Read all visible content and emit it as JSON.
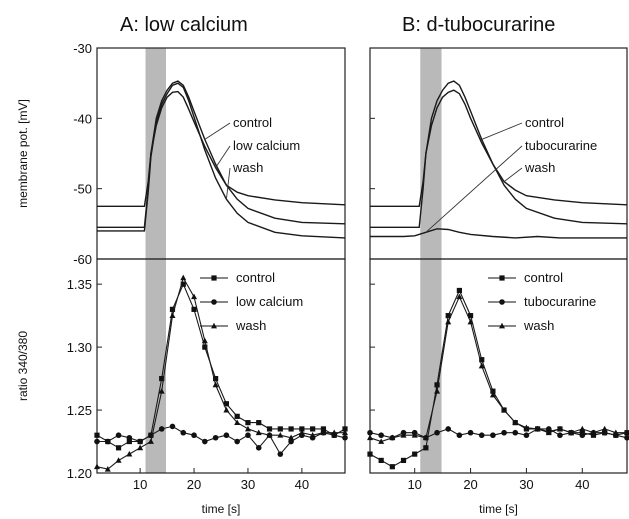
{
  "chart_data": [
    {
      "type": "line",
      "panel": "A",
      "title": "A: low calcium",
      "stimulus_band": [
        11,
        14.8
      ],
      "top": {
        "ylabel": "membrane pot. [mV]",
        "ylim": [
          -60,
          -30
        ],
        "yticks": [
          "-30",
          "-40",
          "-50",
          "-60"
        ],
        "labels": [
          "control",
          "low calcium",
          "wash"
        ],
        "series": [
          {
            "name": "control",
            "x": [
              2,
              10.8,
              11.5,
              12,
              13,
              14,
              15,
              16,
              17,
              18,
              19,
              20,
              22,
              24,
              26,
              28,
              30,
              35,
              40,
              48
            ],
            "y": [
              -55.5,
              -55.5,
              -50,
              -45,
              -40,
              -37.5,
              -36,
              -35,
              -34.7,
              -35.3,
              -37,
              -39,
              -43,
              -46.5,
              -49.5,
              -51.5,
              -52.8,
              -54.2,
              -54.8,
              -55
            ]
          },
          {
            "name": "low calcium",
            "x": [
              2,
              10.8,
              11.5,
              12,
              13,
              14,
              15,
              16,
              17,
              18,
              19,
              20,
              22,
              24,
              26,
              28,
              30,
              35,
              40,
              48
            ],
            "y": [
              -52.5,
              -52.5,
              -49,
              -45,
              -41,
              -38.5,
              -37,
              -36.3,
              -36.2,
              -37,
              -38.7,
              -40.5,
              -44,
              -47,
              -49.5,
              -50.5,
              -51,
              -51.6,
              -52,
              -52.3
            ]
          },
          {
            "name": "wash",
            "x": [
              2,
              10.8,
              11.5,
              12,
              13,
              14,
              15,
              16,
              17,
              18,
              19,
              20,
              22,
              24,
              26,
              28,
              30,
              35,
              40,
              48
            ],
            "y": [
              -56,
              -56,
              -50.5,
              -45.5,
              -40.5,
              -38,
              -36.5,
              -35.3,
              -35,
              -35.6,
              -37.5,
              -39.8,
              -44.5,
              -48.5,
              -51.5,
              -53.5,
              -54.8,
              -56.2,
              -56.7,
              -57
            ]
          }
        ]
      },
      "bottom": {
        "ylabel": "ratio 340/380",
        "xlabel": "time [s]",
        "xlim": [
          2,
          48
        ],
        "ylim": [
          1.2,
          1.37
        ],
        "yticks": [
          "1.35",
          "1.30",
          "1.25",
          "1.20"
        ],
        "xticks": [
          "10",
          "20",
          "30",
          "40"
        ],
        "legend": [
          "control",
          "low calcium",
          "wash"
        ],
        "series": [
          {
            "name": "control",
            "x": [
              2,
              4,
              6,
              8,
              10,
              12,
              14,
              16,
              18,
              20,
              22,
              24,
              26,
              28,
              30,
              32,
              34,
              36,
              38,
              40,
              42,
              44,
              46,
              48
            ],
            "y": [
              1.23,
              1.225,
              1.22,
              1.225,
              1.225,
              1.23,
              1.275,
              1.33,
              1.35,
              1.33,
              1.3,
              1.275,
              1.255,
              1.245,
              1.24,
              1.24,
              1.235,
              1.235,
              1.235,
              1.235,
              1.235,
              1.235,
              1.23,
              1.235
            ]
          },
          {
            "name": "low calcium",
            "x": [
              2,
              4,
              6,
              8,
              10,
              12,
              14,
              16,
              18,
              20,
              22,
              24,
              26,
              28,
              30,
              32,
              34,
              36,
              38,
              40,
              42,
              44,
              46,
              48
            ],
            "y": [
              1.225,
              1.225,
              1.23,
              1.228,
              1.225,
              1.23,
              1.235,
              1.237,
              1.232,
              1.23,
              1.225,
              1.228,
              1.23,
              1.225,
              1.23,
              1.22,
              1.23,
              1.215,
              1.225,
              1.23,
              1.228,
              1.232,
              1.23,
              1.228
            ]
          },
          {
            "name": "wash",
            "x": [
              2,
              4,
              6,
              8,
              10,
              12,
              14,
              16,
              18,
              20,
              22,
              24,
              26,
              28,
              30,
              32,
              34,
              36,
              38,
              40,
              42,
              44,
              46,
              48
            ],
            "y": [
              1.205,
              1.203,
              1.21,
              1.215,
              1.22,
              1.225,
              1.265,
              1.325,
              1.355,
              1.34,
              1.305,
              1.27,
              1.25,
              1.24,
              1.235,
              1.232,
              1.23,
              1.23,
              1.228,
              1.232,
              1.23,
              1.232,
              1.232,
              1.232
            ]
          }
        ]
      }
    },
    {
      "type": "line",
      "panel": "B",
      "title": "B: d-tubocurarine",
      "stimulus_band": [
        11,
        14.8
      ],
      "top": {
        "ylabel": "",
        "ylim": [
          -60,
          -30
        ],
        "labels": [
          "control",
          "tubocurarine",
          "wash"
        ],
        "series": [
          {
            "name": "control",
            "x": [
              2,
              10.8,
              11.5,
              12,
              13,
              14,
              15,
              16,
              17,
              18,
              19,
              20,
              22,
              24,
              26,
              28,
              30,
              35,
              40,
              48
            ],
            "y": [
              -55.5,
              -55.5,
              -50,
              -45,
              -40,
              -37.5,
              -36,
              -35,
              -34.7,
              -35.3,
              -37,
              -39,
              -43,
              -46.5,
              -49.5,
              -51.5,
              -52.8,
              -54.2,
              -54.8,
              -55
            ]
          },
          {
            "name": "tubocurarine",
            "x": [
              2,
              8,
              10,
              12,
              14,
              16,
              18,
              20,
              24,
              28,
              32,
              36,
              40,
              44,
              48
            ],
            "y": [
              -56.8,
              -56.8,
              -56.7,
              -56.2,
              -55.7,
              -55.8,
              -56.2,
              -56.5,
              -56.8,
              -57,
              -56.8,
              -57,
              -57,
              -57,
              -57
            ]
          },
          {
            "name": "wash",
            "x": [
              2,
              10.8,
              11.5,
              12,
              13,
              14,
              15,
              16,
              17,
              18,
              19,
              20,
              22,
              24,
              26,
              28,
              30,
              35,
              40,
              48
            ],
            "y": [
              -52.5,
              -52.5,
              -49,
              -45,
              -41,
              -38.5,
              -37,
              -36.3,
              -36,
              -36.5,
              -38,
              -40,
              -43.5,
              -46.5,
              -49,
              -50.2,
              -51,
              -51.6,
              -52,
              -52.3
            ]
          }
        ]
      },
      "bottom": {
        "xlabel": "time [s]",
        "xlim": [
          2,
          48
        ],
        "ylim": [
          1.2,
          1.37
        ],
        "xticks": [
          "10",
          "20",
          "30",
          "40"
        ],
        "legend": [
          "control",
          "tubocurarine",
          "wash"
        ],
        "series": [
          {
            "name": "control",
            "x": [
              2,
              4,
              6,
              8,
              10,
              12,
              14,
              16,
              18,
              20,
              22,
              24,
              26,
              28,
              30,
              32,
              34,
              36,
              38,
              40,
              42,
              44,
              46,
              48
            ],
            "y": [
              1.215,
              1.21,
              1.205,
              1.21,
              1.215,
              1.22,
              1.27,
              1.325,
              1.345,
              1.325,
              1.29,
              1.265,
              1.25,
              1.24,
              1.235,
              1.235,
              1.233,
              1.235,
              1.232,
              1.232,
              1.23,
              1.232,
              1.23,
              1.232
            ]
          },
          {
            "name": "tubocurarine",
            "x": [
              2,
              4,
              6,
              8,
              10,
              12,
              14,
              16,
              18,
              20,
              22,
              24,
              26,
              28,
              30,
              32,
              34,
              36,
              38,
              40,
              42,
              44,
              46,
              48
            ],
            "y": [
              1.232,
              1.23,
              1.228,
              1.232,
              1.232,
              1.228,
              1.232,
              1.235,
              1.23,
              1.232,
              1.23,
              1.23,
              1.232,
              1.232,
              1.23,
              1.235,
              1.235,
              1.23,
              1.232,
              1.23,
              1.232,
              1.232,
              1.23,
              1.228
            ]
          },
          {
            "name": "wash",
            "x": [
              2,
              4,
              6,
              8,
              10,
              12,
              14,
              16,
              18,
              20,
              22,
              24,
              26,
              28,
              30,
              32,
              34,
              36,
              38,
              40,
              42,
              44,
              46,
              48
            ],
            "y": [
              1.228,
              1.225,
              1.228,
              1.23,
              1.23,
              1.228,
              1.265,
              1.32,
              1.34,
              1.32,
              1.285,
              1.262,
              1.25,
              1.24,
              1.236,
              1.235,
              1.232,
              1.235,
              1.232,
              1.235,
              1.232,
              1.235,
              1.232,
              1.232
            ]
          }
        ]
      }
    }
  ]
}
